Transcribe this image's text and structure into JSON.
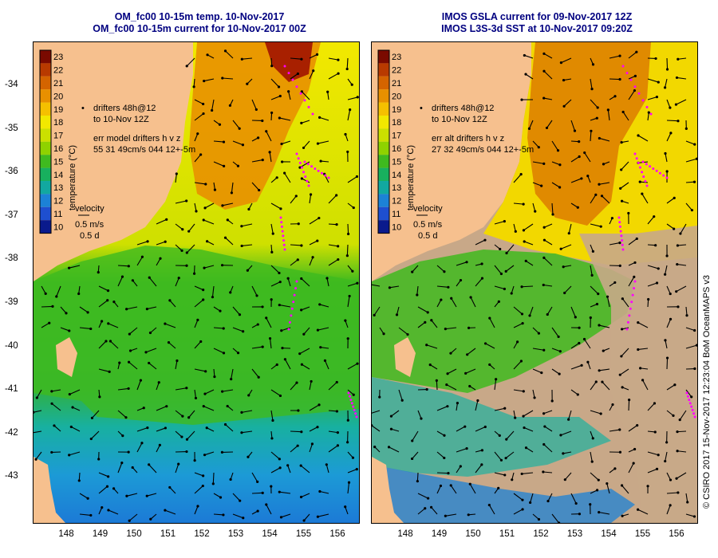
{
  "panels": [
    {
      "title_line1": "OM_fc00 10-15m temp. 10-Nov-2017",
      "title_line2": "OM_fc00 10-15m current for 10-Nov-2017 00Z",
      "drifters_line1": "drifters 48h@12",
      "drifters_line2": "to 10-Nov 12Z",
      "err_line1": "err model drifters h v z",
      "err_line2": "55 31 49cm/s 044 12+-5m",
      "velocity_label": "velocity",
      "velocity_speed": "0.5 m/s",
      "velocity_time": "0.5 d",
      "colorbar_label": "temperature (°C)"
    },
    {
      "title_line1": "IMOS GSLA current for 09-Nov-2017 12Z",
      "title_line2": "IMOS L3S-3d SST at 10-Nov-2017 09:20Z",
      "drifters_line1": "drifters 48h@12",
      "drifters_line2": "to 10-Nov 12Z",
      "err_line1": "err alt drifters h v z",
      "err_line2": "27 32 49cm/s 044 12+-5m",
      "velocity_label": "velocity",
      "velocity_speed": "0.5 m/s",
      "velocity_time": "0.5 d",
      "colorbar_label": "temperature (°C)"
    }
  ],
  "colorbar_ticks": [
    "23",
    "22",
    "21",
    "20",
    "19",
    "18",
    "17",
    "16",
    "15",
    "14",
    "13",
    "12",
    "11",
    "10"
  ],
  "colorbar_colors": [
    "#7a0a00",
    "#b83a00",
    "#d46400",
    "#e89000",
    "#f5c000",
    "#f2e800",
    "#cbe000",
    "#8fd200",
    "#3fba1f",
    "#18b05e",
    "#12a8a0",
    "#1c82d6",
    "#1e4fd0",
    "#0a1a8c"
  ],
  "lat_labels": [
    "-34",
    "-35",
    "-36",
    "-37",
    "-38",
    "-39",
    "-40",
    "-41",
    "-42",
    "-43"
  ],
  "lon_labels": [
    "148",
    "149",
    "150",
    "151",
    "152",
    "153",
    "154",
    "155",
    "156"
  ],
  "credit": "© CSIRO 2017  15-Nov-2017 12:23:04 BoM OceanMAPS v3",
  "colors": {
    "land": "#f6c08e",
    "title": "#000080",
    "drifter": "#ff00ff",
    "cloud": "#c8a888"
  }
}
